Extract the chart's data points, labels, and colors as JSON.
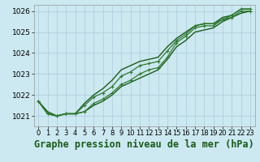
{
  "title": "Graphe pression niveau de la mer (hPa)",
  "xlabel_hours": [
    0,
    1,
    2,
    3,
    4,
    5,
    6,
    7,
    8,
    9,
    10,
    11,
    12,
    13,
    14,
    15,
    16,
    17,
    18,
    19,
    20,
    21,
    22,
    23
  ],
  "ylim": [
    1020.5,
    1026.3
  ],
  "yticks": [
    1021,
    1022,
    1023,
    1024,
    1025,
    1026
  ],
  "background_color": "#cce8f0",
  "grid_color": "#aaccdd",
  "line_color_dark": "#1a5c1a",
  "line_color_med": "#2d7a2d",
  "lines": [
    [
      1021.7,
      1021.1,
      1021.0,
      1021.1,
      1021.1,
      1021.2,
      1021.5,
      1021.7,
      1022.0,
      1022.4,
      1022.6,
      1022.8,
      1023.0,
      1023.2,
      1023.7,
      1024.3,
      1024.6,
      1025.0,
      1025.1,
      1025.2,
      1025.5,
      1025.7,
      1025.9,
      1026.0
    ],
    [
      1021.7,
      1021.1,
      1021.0,
      1021.1,
      1021.1,
      1021.2,
      1021.6,
      1021.8,
      1022.1,
      1022.5,
      1022.7,
      1023.0,
      1023.2,
      1023.3,
      1023.8,
      1024.5,
      1024.8,
      1025.2,
      1025.3,
      1025.3,
      1025.6,
      1025.7,
      1026.0,
      1026.0
    ],
    [
      1021.7,
      1021.1,
      1021.0,
      1021.1,
      1021.1,
      1021.5,
      1021.9,
      1022.1,
      1022.4,
      1022.9,
      1023.1,
      1023.4,
      1023.5,
      1023.6,
      1024.1,
      1024.6,
      1024.9,
      1025.3,
      1025.4,
      1025.4,
      1025.6,
      1025.8,
      1026.1,
      1026.1
    ],
    [
      1021.7,
      1021.2,
      1021.0,
      1021.1,
      1021.1,
      1021.6,
      1022.0,
      1022.3,
      1022.7,
      1023.2,
      1023.4,
      1023.6,
      1023.7,
      1023.8,
      1024.3,
      1024.7,
      1025.0,
      1025.3,
      1025.4,
      1025.4,
      1025.7,
      1025.8,
      1026.1,
      1026.1
    ]
  ],
  "marker_lines": [
    0,
    2
  ],
  "title_fontsize": 8.5,
  "tick_fontsize": 6.5
}
